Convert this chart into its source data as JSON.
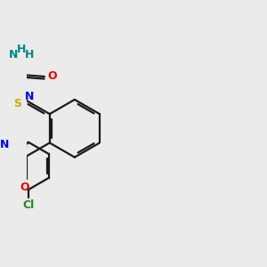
{
  "background_color": "#ebebeb",
  "bond_color": "#1a1a1a",
  "N_color": "#0000ee",
  "O_color": "#ee0000",
  "S_color": "#ccaa00",
  "Cl_color": "#228822",
  "NH2_color": "#008888",
  "lw": 1.6,
  "dbo": 0.045,
  "xlim": [
    -2.5,
    4.5
  ],
  "ylim": [
    -3.5,
    2.5
  ]
}
